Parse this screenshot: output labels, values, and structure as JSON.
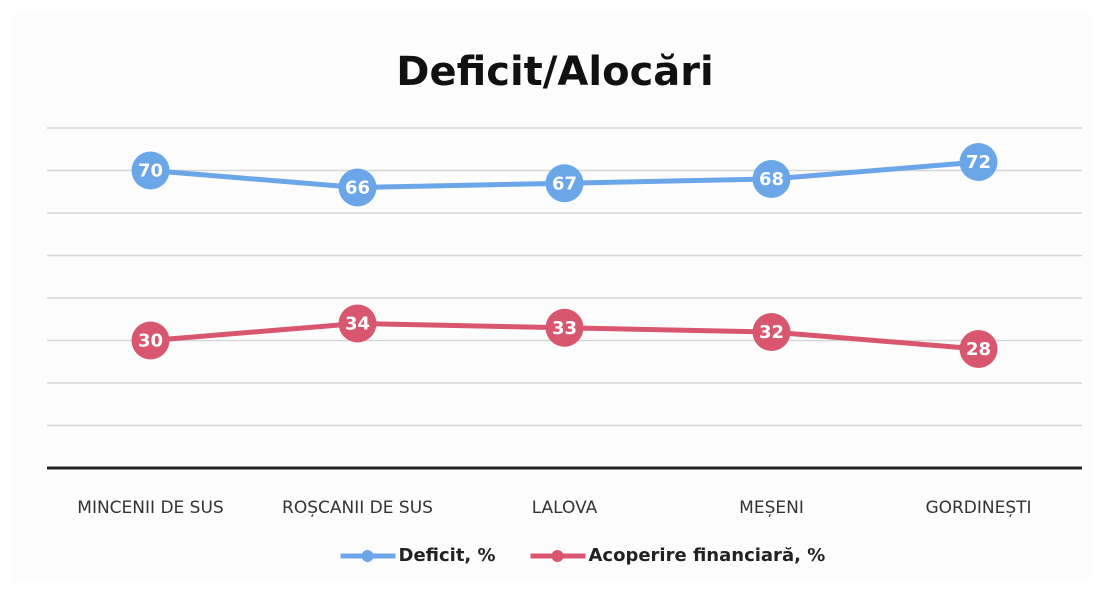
{
  "chart_data": {
    "type": "line",
    "title": "Deficit/Alocări",
    "categories": [
      "MINCENII DE SUS",
      "ROȘCANII DE SUS",
      "LALOVA",
      "MEȘENI",
      "GORDINEȘTI"
    ],
    "series": [
      {
        "name": "Deficit, %",
        "color": "#6aa6e8",
        "values": [
          70,
          66,
          67,
          68,
          72
        ]
      },
      {
        "name": "Acoperire financiară, %",
        "color": "#d8576f",
        "values": [
          30,
          34,
          33,
          32,
          28
        ]
      }
    ],
    "ylim": [
      0,
      80
    ],
    "yticks": [
      0,
      10,
      20,
      30,
      40,
      50,
      60,
      70,
      80
    ],
    "grid": true,
    "legend": "bottom"
  }
}
